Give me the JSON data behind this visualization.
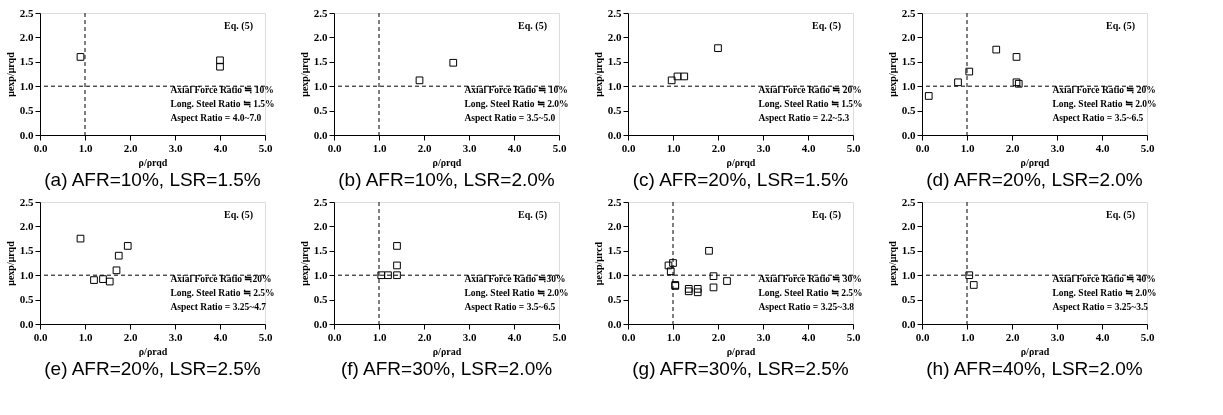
{
  "chart_data": [
    {
      "type": "scatter",
      "title": "(a) AFR=10%, LSR=1.5%",
      "xlabel": "ρ/ρrqd",
      "ylabel": "μexp/μrqd",
      "marker": "square",
      "grid": false,
      "xlim": [
        0,
        5
      ],
      "ylim": [
        0,
        2.5
      ],
      "xticks": [
        {
          "value": 0,
          "label": "0.0"
        },
        {
          "value": 1,
          "label": "1.0"
        },
        {
          "value": 2,
          "label": "2.0"
        },
        {
          "value": 3,
          "label": "3.0"
        },
        {
          "value": 4,
          "label": "4.0"
        },
        {
          "value": 5,
          "label": "5.0"
        }
      ],
      "yticks": [
        {
          "value": 0,
          "label": "0.0"
        },
        {
          "value": 0.5,
          "label": "0.5"
        },
        {
          "value": 1,
          "label": "1.0"
        },
        {
          "value": 1.5,
          "label": "1.5"
        },
        {
          "value": 2,
          "label": "2.0"
        },
        {
          "value": 2.5,
          "label": "2.5"
        }
      ],
      "series": [
        {
          "color": "#000000",
          "x": [
            0.9,
            4.0,
            4.0
          ],
          "values": [
            1.6,
            1.53,
            1.4
          ]
        }
      ],
      "ref_lines": [
        {
          "axis": "x",
          "value": 1,
          "line_style": "dashed"
        },
        {
          "axis": "y",
          "value": 1,
          "line_style": "dashed"
        }
      ],
      "annotations": [
        "Eq. (5)",
        "Axial Force Ratio ≒ 10%",
        "Long. Steel Ratio ≒ 1.5%",
        "Aspect Ratio = 4.0~7.0"
      ]
    },
    {
      "type": "scatter",
      "title": "(b) AFR=10%, LSR=2.0%",
      "xlabel": "ρ/ρrqd",
      "ylabel": "μexp/μrqd",
      "marker": "square",
      "grid": false,
      "xlim": [
        0,
        5
      ],
      "ylim": [
        0,
        2.5
      ],
      "xticks": [
        {
          "value": 0,
          "label": "0.0"
        },
        {
          "value": 1,
          "label": "1.0"
        },
        {
          "value": 2,
          "label": "2.0"
        },
        {
          "value": 3,
          "label": "3.0"
        },
        {
          "value": 4,
          "label": "4.0"
        },
        {
          "value": 5,
          "label": "5.0"
        }
      ],
      "yticks": [
        {
          "value": 0,
          "label": "0.0"
        },
        {
          "value": 0.5,
          "label": "0.5"
        },
        {
          "value": 1,
          "label": "1.0"
        },
        {
          "value": 1.5,
          "label": "1.5"
        },
        {
          "value": 2,
          "label": "2.0"
        },
        {
          "value": 2.5,
          "label": "2.5"
        }
      ],
      "series": [
        {
          "color": "#000000",
          "x": [
            1.9,
            2.65
          ],
          "values": [
            1.12,
            1.48
          ]
        }
      ],
      "ref_lines": [
        {
          "axis": "x",
          "value": 1,
          "line_style": "dashed"
        },
        {
          "axis": "y",
          "value": 1,
          "line_style": "dashed"
        }
      ],
      "annotations": [
        "Eq. (5)",
        "Axial Force Ratio ≒ 10%",
        "Long. Steel Ratio ≒ 2.0%",
        "Aspect Ratio = 3.5~5.0"
      ]
    },
    {
      "type": "scatter",
      "title": "(c) AFR=20%, LSR=1.5%",
      "xlabel": "ρ/ρrqd",
      "ylabel": "μexp/μrqd",
      "marker": "square",
      "grid": false,
      "xlim": [
        0,
        5
      ],
      "ylim": [
        0,
        2.5
      ],
      "xticks": [
        {
          "value": 0,
          "label": "0.0"
        },
        {
          "value": 1,
          "label": "1.0"
        },
        {
          "value": 2,
          "label": "2.0"
        },
        {
          "value": 3,
          "label": "3.0"
        },
        {
          "value": 4,
          "label": "4.0"
        },
        {
          "value": 5,
          "label": "5.0"
        }
      ],
      "yticks": [
        {
          "value": 0,
          "label": "0.0"
        },
        {
          "value": 0.5,
          "label": "0.5"
        },
        {
          "value": 1,
          "label": "1.0"
        },
        {
          "value": 1.5,
          "label": "1.5"
        },
        {
          "value": 2,
          "label": "2.0"
        },
        {
          "value": 2.5,
          "label": "2.5"
        }
      ],
      "series": [
        {
          "color": "#000000",
          "x": [
            0.97,
            1.1,
            1.25,
            2.0
          ],
          "values": [
            1.12,
            1.2,
            1.2,
            1.78
          ]
        }
      ],
      "ref_lines": [
        {
          "axis": "y",
          "value": 1,
          "line_style": "dashed"
        }
      ],
      "annotations": [
        "Eq. (5)",
        "Axial Force Ratio ≒ 20%",
        "Long. Steel Ratio ≒ 1.5%",
        "Aspect Ratio = 2.2~5.3"
      ]
    },
    {
      "type": "scatter",
      "title": "(d) AFR=20%, LSR=2.0%",
      "xlabel": "ρ/ρrqd",
      "ylabel": "μexp/μrqd",
      "marker": "square",
      "grid": false,
      "xlim": [
        0,
        5
      ],
      "ylim": [
        0,
        2.5
      ],
      "xticks": [
        {
          "value": 0,
          "label": "0.0"
        },
        {
          "value": 1,
          "label": "1.0"
        },
        {
          "value": 2,
          "label": "2.0"
        },
        {
          "value": 3,
          "label": "3.0"
        },
        {
          "value": 4,
          "label": "4.0"
        },
        {
          "value": 5,
          "label": "5.0"
        }
      ],
      "yticks": [
        {
          "value": 0,
          "label": "0.0"
        },
        {
          "value": 0.5,
          "label": "0.5"
        },
        {
          "value": 1,
          "label": "1.0"
        },
        {
          "value": 1.5,
          "label": "1.5"
        },
        {
          "value": 2,
          "label": "2.0"
        },
        {
          "value": 2.5,
          "label": "2.5"
        }
      ],
      "series": [
        {
          "color": "#000000",
          "x": [
            0.15,
            0.8,
            1.05,
            1.65,
            2.1,
            2.1,
            2.15
          ],
          "values": [
            0.8,
            1.08,
            1.3,
            1.75,
            1.6,
            1.08,
            1.05
          ]
        }
      ],
      "ref_lines": [
        {
          "axis": "x",
          "value": 1,
          "line_style": "dashed"
        },
        {
          "axis": "y",
          "value": 1,
          "line_style": "dashed"
        }
      ],
      "annotations": [
        "Eq. (5)",
        "Axial Force Ratio ≒ 20%",
        "Long. Steel Ratio ≒ 2.0%",
        "Aspect Ratio = 3.5~6.5"
      ]
    },
    {
      "type": "scatter",
      "title": "(e) AFR=20%, LSR=2.5%",
      "xlabel": "ρ/ρrad",
      "ylabel": "μexp/μrqd",
      "marker": "square",
      "grid": false,
      "xlim": [
        0,
        5
      ],
      "ylim": [
        0,
        2.5
      ],
      "xticks": [
        {
          "value": 0,
          "label": "0.0"
        },
        {
          "value": 1,
          "label": "1.0"
        },
        {
          "value": 2,
          "label": "2.0"
        },
        {
          "value": 3,
          "label": "3.0"
        },
        {
          "value": 4,
          "label": "4.0"
        },
        {
          "value": 5,
          "label": "5.0"
        }
      ],
      "yticks": [
        {
          "value": 0,
          "label": "0.0"
        },
        {
          "value": 0.5,
          "label": "0.5"
        },
        {
          "value": 1,
          "label": "1.0"
        },
        {
          "value": 1.5,
          "label": "1.5"
        },
        {
          "value": 2,
          "label": "2.0"
        },
        {
          "value": 2.5,
          "label": "2.5"
        }
      ],
      "series": [
        {
          "color": "#000000",
          "x": [
            0.9,
            1.2,
            1.4,
            1.55,
            1.7,
            1.75,
            1.95
          ],
          "values": [
            1.75,
            0.9,
            0.92,
            0.87,
            1.1,
            1.4,
            1.6
          ]
        }
      ],
      "ref_lines": [
        {
          "axis": "y",
          "value": 1,
          "line_style": "dashed"
        }
      ],
      "annotations": [
        "Eq. (5)",
        "Axial Force Ratio ≒20%",
        "Long. Steel Ratio ≒ 2.5%",
        "Aspect Ratio = 3.25~4.7"
      ]
    },
    {
      "type": "scatter",
      "title": "(f) AFR=30%, LSR=2.0%",
      "xlabel": "ρ/ρrad",
      "ylabel": "μexp/μrqd",
      "marker": "square",
      "grid": false,
      "xlim": [
        0,
        5
      ],
      "ylim": [
        0,
        2.5
      ],
      "xticks": [
        {
          "value": 0,
          "label": "0.0"
        },
        {
          "value": 1,
          "label": "1.0"
        },
        {
          "value": 2,
          "label": "2.0"
        },
        {
          "value": 3,
          "label": "3.0"
        },
        {
          "value": 4,
          "label": "4.0"
        },
        {
          "value": 5,
          "label": "5.0"
        }
      ],
      "yticks": [
        {
          "value": 0,
          "label": "0.0"
        },
        {
          "value": 0.5,
          "label": "0.5"
        },
        {
          "value": 1,
          "label": "1.0"
        },
        {
          "value": 1.5,
          "label": "1.5"
        },
        {
          "value": 2,
          "label": "2.0"
        },
        {
          "value": 2.5,
          "label": "2.5"
        }
      ],
      "series": [
        {
          "color": "#000000",
          "x": [
            1.05,
            1.2,
            1.4,
            1.4,
            1.4
          ],
          "values": [
            1.0,
            1.0,
            1.0,
            1.2,
            1.6
          ]
        }
      ],
      "ref_lines": [
        {
          "axis": "x",
          "value": 1,
          "line_style": "dashed"
        },
        {
          "axis": "y",
          "value": 1,
          "line_style": "dashed"
        }
      ],
      "annotations": [
        "Eq. (5)",
        "Axial Force Ratio ≒30%",
        "Long. Steel Ratio ≒ 2.0%",
        "Aspect Ratio = 3.5~6.5"
      ]
    },
    {
      "type": "scatter",
      "title": "(g) AFR=30%, LSR=2.5%",
      "xlabel": "ρ/ρrad",
      "ylabel": "μexp/μrcd",
      "marker": "square",
      "grid": false,
      "xlim": [
        0,
        5
      ],
      "ylim": [
        0,
        2.5
      ],
      "xticks": [
        {
          "value": 0,
          "label": "0.0"
        },
        {
          "value": 1,
          "label": "1.0"
        },
        {
          "value": 2,
          "label": "2.0"
        },
        {
          "value": 3,
          "label": "3.0"
        },
        {
          "value": 4,
          "label": "4.0"
        },
        {
          "value": 5,
          "label": "5.0"
        }
      ],
      "yticks": [
        {
          "value": 0,
          "label": "0.0"
        },
        {
          "value": 0.5,
          "label": "0.5"
        },
        {
          "value": 1,
          "label": "1.0"
        },
        {
          "value": 1.5,
          "label": "1.5"
        },
        {
          "value": 2,
          "label": "2.0"
        },
        {
          "value": 2.5,
          "label": "2.5"
        }
      ],
      "series": [
        {
          "color": "#000000",
          "x": [
            0.9,
            0.95,
            1.0,
            1.05,
            1.05,
            1.35,
            1.35,
            1.55,
            1.55,
            1.8,
            1.9,
            1.9,
            2.2
          ],
          "values": [
            1.2,
            1.08,
            1.25,
            0.8,
            0.78,
            0.72,
            0.67,
            0.72,
            0.65,
            1.5,
            0.98,
            0.75,
            0.88
          ]
        }
      ],
      "ref_lines": [
        {
          "axis": "x",
          "value": 1,
          "line_style": "dashed"
        },
        {
          "axis": "y",
          "value": 1,
          "line_style": "dashed"
        }
      ],
      "annotations": [
        "Eq. (5)",
        "Axial Force Ratio ≒ 30%",
        "Long. Steel Ratio ≒ 2.5%",
        "Aspect Ratio = 3.25~3.8"
      ]
    },
    {
      "type": "scatter",
      "title": "(h) AFR=40%, LSR=2.0%",
      "xlabel": "ρ/ρrad",
      "ylabel": "μexp/μrqd",
      "marker": "square",
      "grid": false,
      "xlim": [
        0,
        5
      ],
      "ylim": [
        0,
        2.5
      ],
      "xticks": [
        {
          "value": 0,
          "label": "0.0"
        },
        {
          "value": 1,
          "label": "1.0"
        },
        {
          "value": 2,
          "label": "2.0"
        },
        {
          "value": 3,
          "label": "3.0"
        },
        {
          "value": 4,
          "label": "4.0"
        },
        {
          "value": 5,
          "label": "5.0"
        }
      ],
      "yticks": [
        {
          "value": 0,
          "label": "0.0"
        },
        {
          "value": 0.5,
          "label": "0.5"
        },
        {
          "value": 1,
          "label": "1.0"
        },
        {
          "value": 1.5,
          "label": "1.5"
        },
        {
          "value": 2,
          "label": "2.0"
        },
        {
          "value": 2.5,
          "label": "2.5"
        }
      ],
      "series": [
        {
          "color": "#000000",
          "x": [
            1.05,
            1.15
          ],
          "values": [
            1.0,
            0.8
          ]
        }
      ],
      "ref_lines": [
        {
          "axis": "x",
          "value": 1,
          "line_style": "dashed"
        },
        {
          "axis": "y",
          "value": 1,
          "line_style": "dashed"
        }
      ],
      "annotations": [
        "Eq. (5)",
        "Axial Force Ratio ≒ 40%",
        "Long. Steel Ratio ≒ 2.0%",
        "Aspect Ratio = 3.25~3.5"
      ]
    }
  ]
}
